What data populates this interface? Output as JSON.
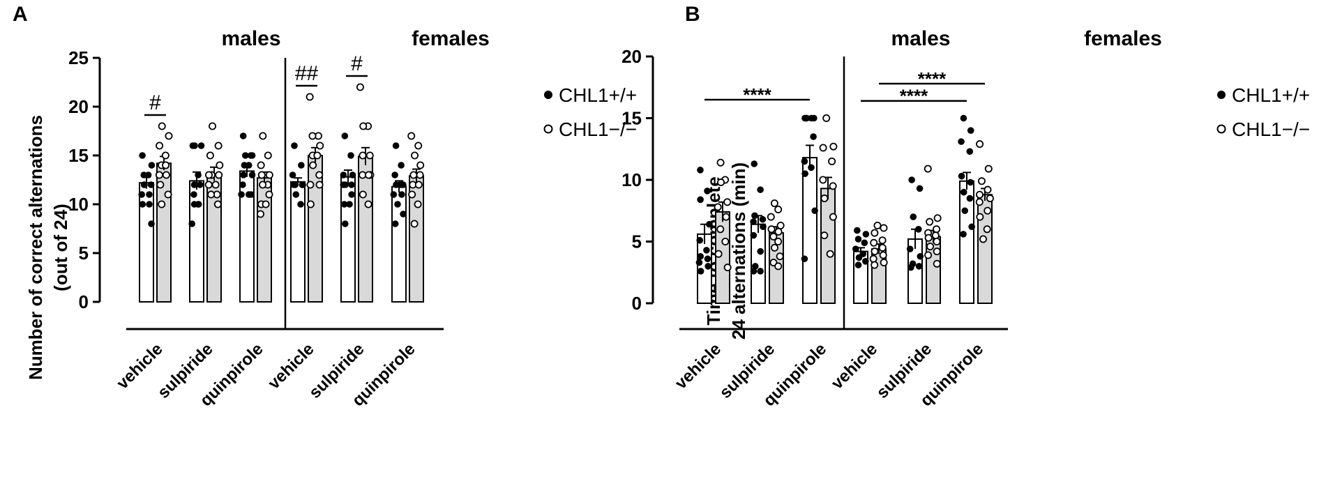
{
  "chart_data": [
    {
      "type": "bar",
      "panel_label": "A",
      "ylabel_line1": "Number of correct alternations",
      "ylabel_line2": "(out of 24)",
      "ylim": [
        0,
        25
      ],
      "yticks": [
        0,
        5,
        10,
        15,
        20,
        25
      ],
      "groups": [
        "males",
        "females"
      ],
      "categories": [
        "vehicle",
        "sulpiride",
        "quinpirole"
      ],
      "series": [
        {
          "name": "CHL1+/+",
          "fill": "#ffffff",
          "marker": "filled",
          "values": [
            [
              12.2,
              12.4,
              13.4
            ],
            [
              12.3,
              12.8,
              11.8
            ]
          ],
          "sem": [
            [
              0.6,
              0.9,
              0.6
            ],
            [
              0.4,
              0.7,
              0.6
            ]
          ],
          "points": [
            [
              [
                15,
                14,
                13,
                13,
                12,
                12,
                12,
                11,
                11,
                10,
                10,
                8
              ],
              [
                16,
                16,
                16,
                13,
                12,
                12,
                11,
                10,
                10,
                10,
                8
              ],
              [
                17,
                15,
                15,
                15,
                14,
                14,
                13,
                13,
                12,
                11,
                11,
                11
              ]
            ],
            [
              [
                16,
                14,
                13,
                12,
                12,
                12,
                12,
                12,
                11,
                10
              ],
              [
                17,
                15,
                13,
                13,
                12,
                12,
                12,
                11,
                10,
                10,
                8
              ],
              [
                16,
                14,
                13,
                12,
                12,
                12,
                11,
                11,
                10,
                9,
                8
              ]
            ]
          ]
        },
        {
          "name": "CHL1−/−",
          "fill": "#d9d9d9",
          "marker": "open",
          "values": [
            [
              14.2,
              13.1,
              12.7
            ],
            [
              15.0,
              14.9,
              12.9
            ]
          ],
          "sem": [
            [
              0.7,
              0.7,
              0.6
            ],
            [
              0.8,
              0.9,
              0.7
            ]
          ],
          "points": [
            [
              [
                18,
                17,
                16,
                15,
                14,
                14,
                13,
                13,
                12,
                11,
                10
              ],
              [
                18,
                16,
                15,
                14,
                13,
                13,
                13,
                12,
                12,
                11,
                11,
                10
              ],
              [
                17,
                15,
                14,
                13,
                13,
                12,
                12,
                11,
                10,
                10,
                9
              ]
            ],
            [
              [
                21,
                17,
                17,
                16,
                15,
                15,
                14,
                13,
                12,
                12,
                10
              ],
              [
                22,
                18,
                18,
                15,
                15,
                13,
                13,
                13,
                11,
                10
              ],
              [
                17,
                16,
                15,
                14,
                13,
                13,
                12,
                12,
                11,
                10,
                8
              ]
            ]
          ]
        }
      ],
      "significance": [
        {
          "label": "#",
          "group": 0,
          "category": 0
        },
        {
          "label": "##",
          "group": 1,
          "category": 0
        },
        {
          "label": "#",
          "group": 1,
          "category": 1
        }
      ]
    },
    {
      "type": "bar",
      "panel_label": "B",
      "ylabel_line1": "Time to complete",
      "ylabel_line2": "24 alternations (min)",
      "ylim": [
        0,
        20
      ],
      "yticks": [
        0,
        5,
        10,
        15,
        20
      ],
      "groups": [
        "males",
        "females"
      ],
      "categories": [
        "vehicle",
        "sulpiride",
        "quinpirole"
      ],
      "series": [
        {
          "name": "CHL1+/+",
          "fill": "#ffffff",
          "marker": "filled",
          "values": [
            [
              5.6,
              6.4,
              11.8
            ],
            [
              4.2,
              5.2,
              9.9
            ]
          ],
          "sem": [
            [
              0.8,
              0.7,
              1.0
            ],
            [
              0.3,
              0.8,
              0.7
            ]
          ],
          "points": [
            [
              [
                10.8,
                9.1,
                8.4,
                6.4,
                5.1,
                4.3,
                3.8,
                3.6,
                3.3,
                3.0,
                2.6
              ],
              [
                11.3,
                9.2,
                7.1,
                6.8,
                6.6,
                6.2,
                5.5,
                4.2,
                3.0,
                2.6,
                2.6
              ],
              [
                15,
                15,
                15,
                15,
                15,
                13.5,
                11.5,
                11.0,
                10.5,
                7.5,
                3.6
              ]
            ],
            [
              [
                5.9,
                5.6,
                5.2,
                4.9,
                4.4,
                4.0,
                3.7,
                3.4,
                3.1
              ],
              [
                10.0,
                9.3,
                7.0,
                6.0,
                4.4,
                3.8,
                3.2,
                3.0,
                2.9
              ],
              [
                15,
                14.0,
                13.1,
                12.3,
                10.3,
                9.8,
                9.0,
                8.5,
                7.5,
                6.2,
                5.6
              ]
            ]
          ]
        },
        {
          "name": "CHL1−/−",
          "fill": "#d9d9d9",
          "marker": "open",
          "values": [
            [
              7.4,
              5.7,
              9.3
            ],
            [
              4.4,
              5.4,
              8.8
            ]
          ],
          "sem": [
            [
              0.8,
              0.5,
              0.9
            ],
            [
              0.4,
              0.5,
              0.5
            ]
          ],
          "points": [
            [
              [
                11.4,
                10.0,
                9.8,
                8.2,
                7.8,
                7.0,
                6.0,
                5.0,
                4.0,
                2.9
              ],
              [
                8.1,
                7.6,
                7.0,
                6.3,
                6.0,
                5.8,
                5.4,
                5.0,
                4.5,
                3.8,
                3.3,
                3.0
              ],
              [
                15,
                12.7,
                12.6,
                11.5,
                10.0,
                9.5,
                8.5,
                7.0,
                5.5,
                4.0
              ]
            ],
            [
              [
                6.3,
                6.1,
                5.7,
                5.1,
                4.9,
                4.5,
                4.2,
                3.9,
                3.6,
                3.3,
                3.1
              ],
              [
                10.9,
                6.9,
                6.6,
                6.0,
                5.7,
                5.5,
                5.3,
                5.0,
                4.6,
                4.2,
                3.9,
                3.2
              ],
              [
                12.9,
                10.9,
                9.9,
                9.2,
                8.8,
                8.5,
                8.2,
                7.5,
                7.0,
                6.0,
                5.2
              ]
            ]
          ]
        }
      ],
      "significance": [
        {
          "label": "****",
          "group": 0,
          "from": [
            0,
            0
          ],
          "to": [
            0,
            2
          ]
        },
        {
          "label": "****",
          "group": 1,
          "from": [
            1,
            0
          ],
          "to": [
            1,
            2
          ],
          "level": 1
        },
        {
          "label": "****",
          "group": 1,
          "from": [
            0,
            0
          ],
          "to": [
            0,
            2
          ],
          "level": 0
        }
      ]
    }
  ]
}
